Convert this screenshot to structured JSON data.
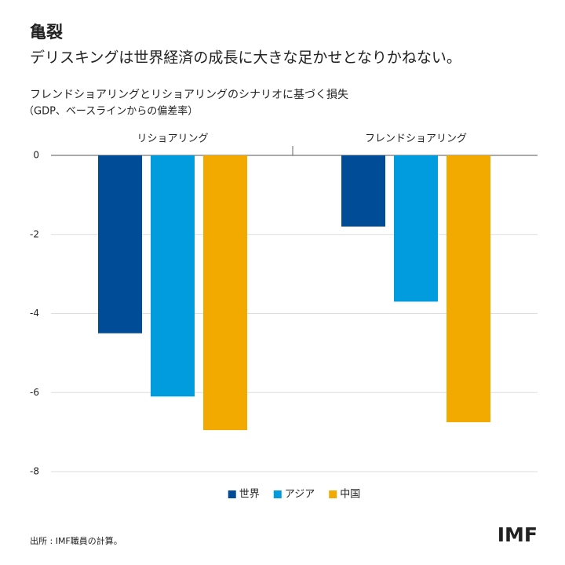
{
  "header": {
    "title": "亀裂",
    "headline": "デリスキングは世界経済の成長に大きな足かせとなりかねない。"
  },
  "chart_data": {
    "type": "bar",
    "title": "フレンドショアリングとリショアリングのシナリオに基づく損失",
    "subtitle": "（GDP、ベースラインからの偏差率）",
    "categories": [
      "リショアリング",
      "フレンドショアリング"
    ],
    "series": [
      {
        "name": "世界",
        "color": "#004c97",
        "values": [
          -4.5,
          -1.8
        ]
      },
      {
        "name": "アジア",
        "color": "#009cde",
        "values": [
          -6.1,
          -3.7
        ]
      },
      {
        "name": "中国",
        "color": "#f2a900",
        "values": [
          -6.95,
          -6.75
        ]
      }
    ],
    "ylim": [
      -8,
      0
    ],
    "yticks": [
      0,
      -2,
      -4,
      -6,
      -8
    ],
    "grid": true,
    "legend": "bottom"
  },
  "footer": {
    "source": "出所 : IMF職員の計算。",
    "logo": "IMF"
  }
}
